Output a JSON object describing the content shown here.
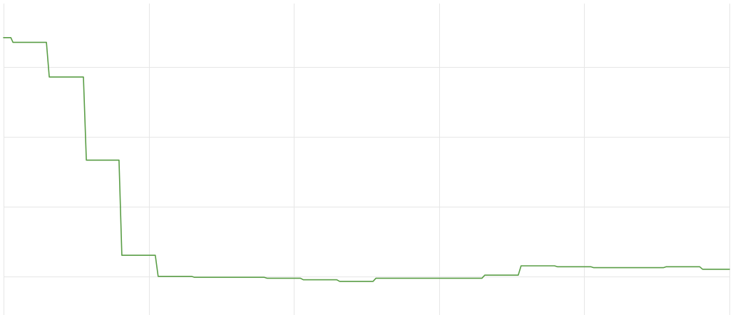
{
  "chart_data": {
    "type": "line",
    "step": true,
    "title": "",
    "xlabel": "",
    "ylabel": "",
    "xlim": [
      0,
      100
    ],
    "ylim": [
      0,
      100
    ],
    "grid": true,
    "x_gridlines": [
      0,
      20,
      40,
      60,
      80,
      100
    ],
    "y_gridlines": [
      12,
      34.5,
      57,
      79.5
    ],
    "colors": {
      "line": "#5a9e46",
      "grid": "#e6e6e6",
      "background": "#ffffff"
    },
    "series": [
      {
        "points": [
          [
            0.0,
            89.0
          ],
          [
            1.0,
            89.0
          ],
          [
            1.3,
            87.5
          ],
          [
            5.9,
            87.5
          ],
          [
            6.3,
            76.3
          ],
          [
            11.0,
            76.3
          ],
          [
            11.4,
            49.5
          ],
          [
            15.9,
            49.5
          ],
          [
            16.3,
            18.8
          ],
          [
            20.9,
            18.8
          ],
          [
            21.3,
            12.0
          ],
          [
            25.9,
            12.0
          ],
          [
            26.3,
            11.7
          ],
          [
            35.9,
            11.7
          ],
          [
            36.3,
            11.4
          ],
          [
            40.9,
            11.4
          ],
          [
            41.3,
            10.9
          ],
          [
            45.9,
            10.9
          ],
          [
            46.3,
            10.4
          ],
          [
            50.9,
            10.4
          ],
          [
            51.3,
            11.4
          ],
          [
            65.9,
            11.4
          ],
          [
            66.3,
            12.4
          ],
          [
            70.9,
            12.4
          ],
          [
            71.3,
            15.4
          ],
          [
            75.9,
            15.4
          ],
          [
            76.3,
            15.1
          ],
          [
            80.9,
            15.1
          ],
          [
            81.3,
            14.8
          ],
          [
            90.9,
            14.8
          ],
          [
            91.3,
            15.1
          ],
          [
            95.9,
            15.1
          ],
          [
            96.3,
            14.3
          ],
          [
            100.0,
            14.3
          ]
        ]
      }
    ]
  }
}
